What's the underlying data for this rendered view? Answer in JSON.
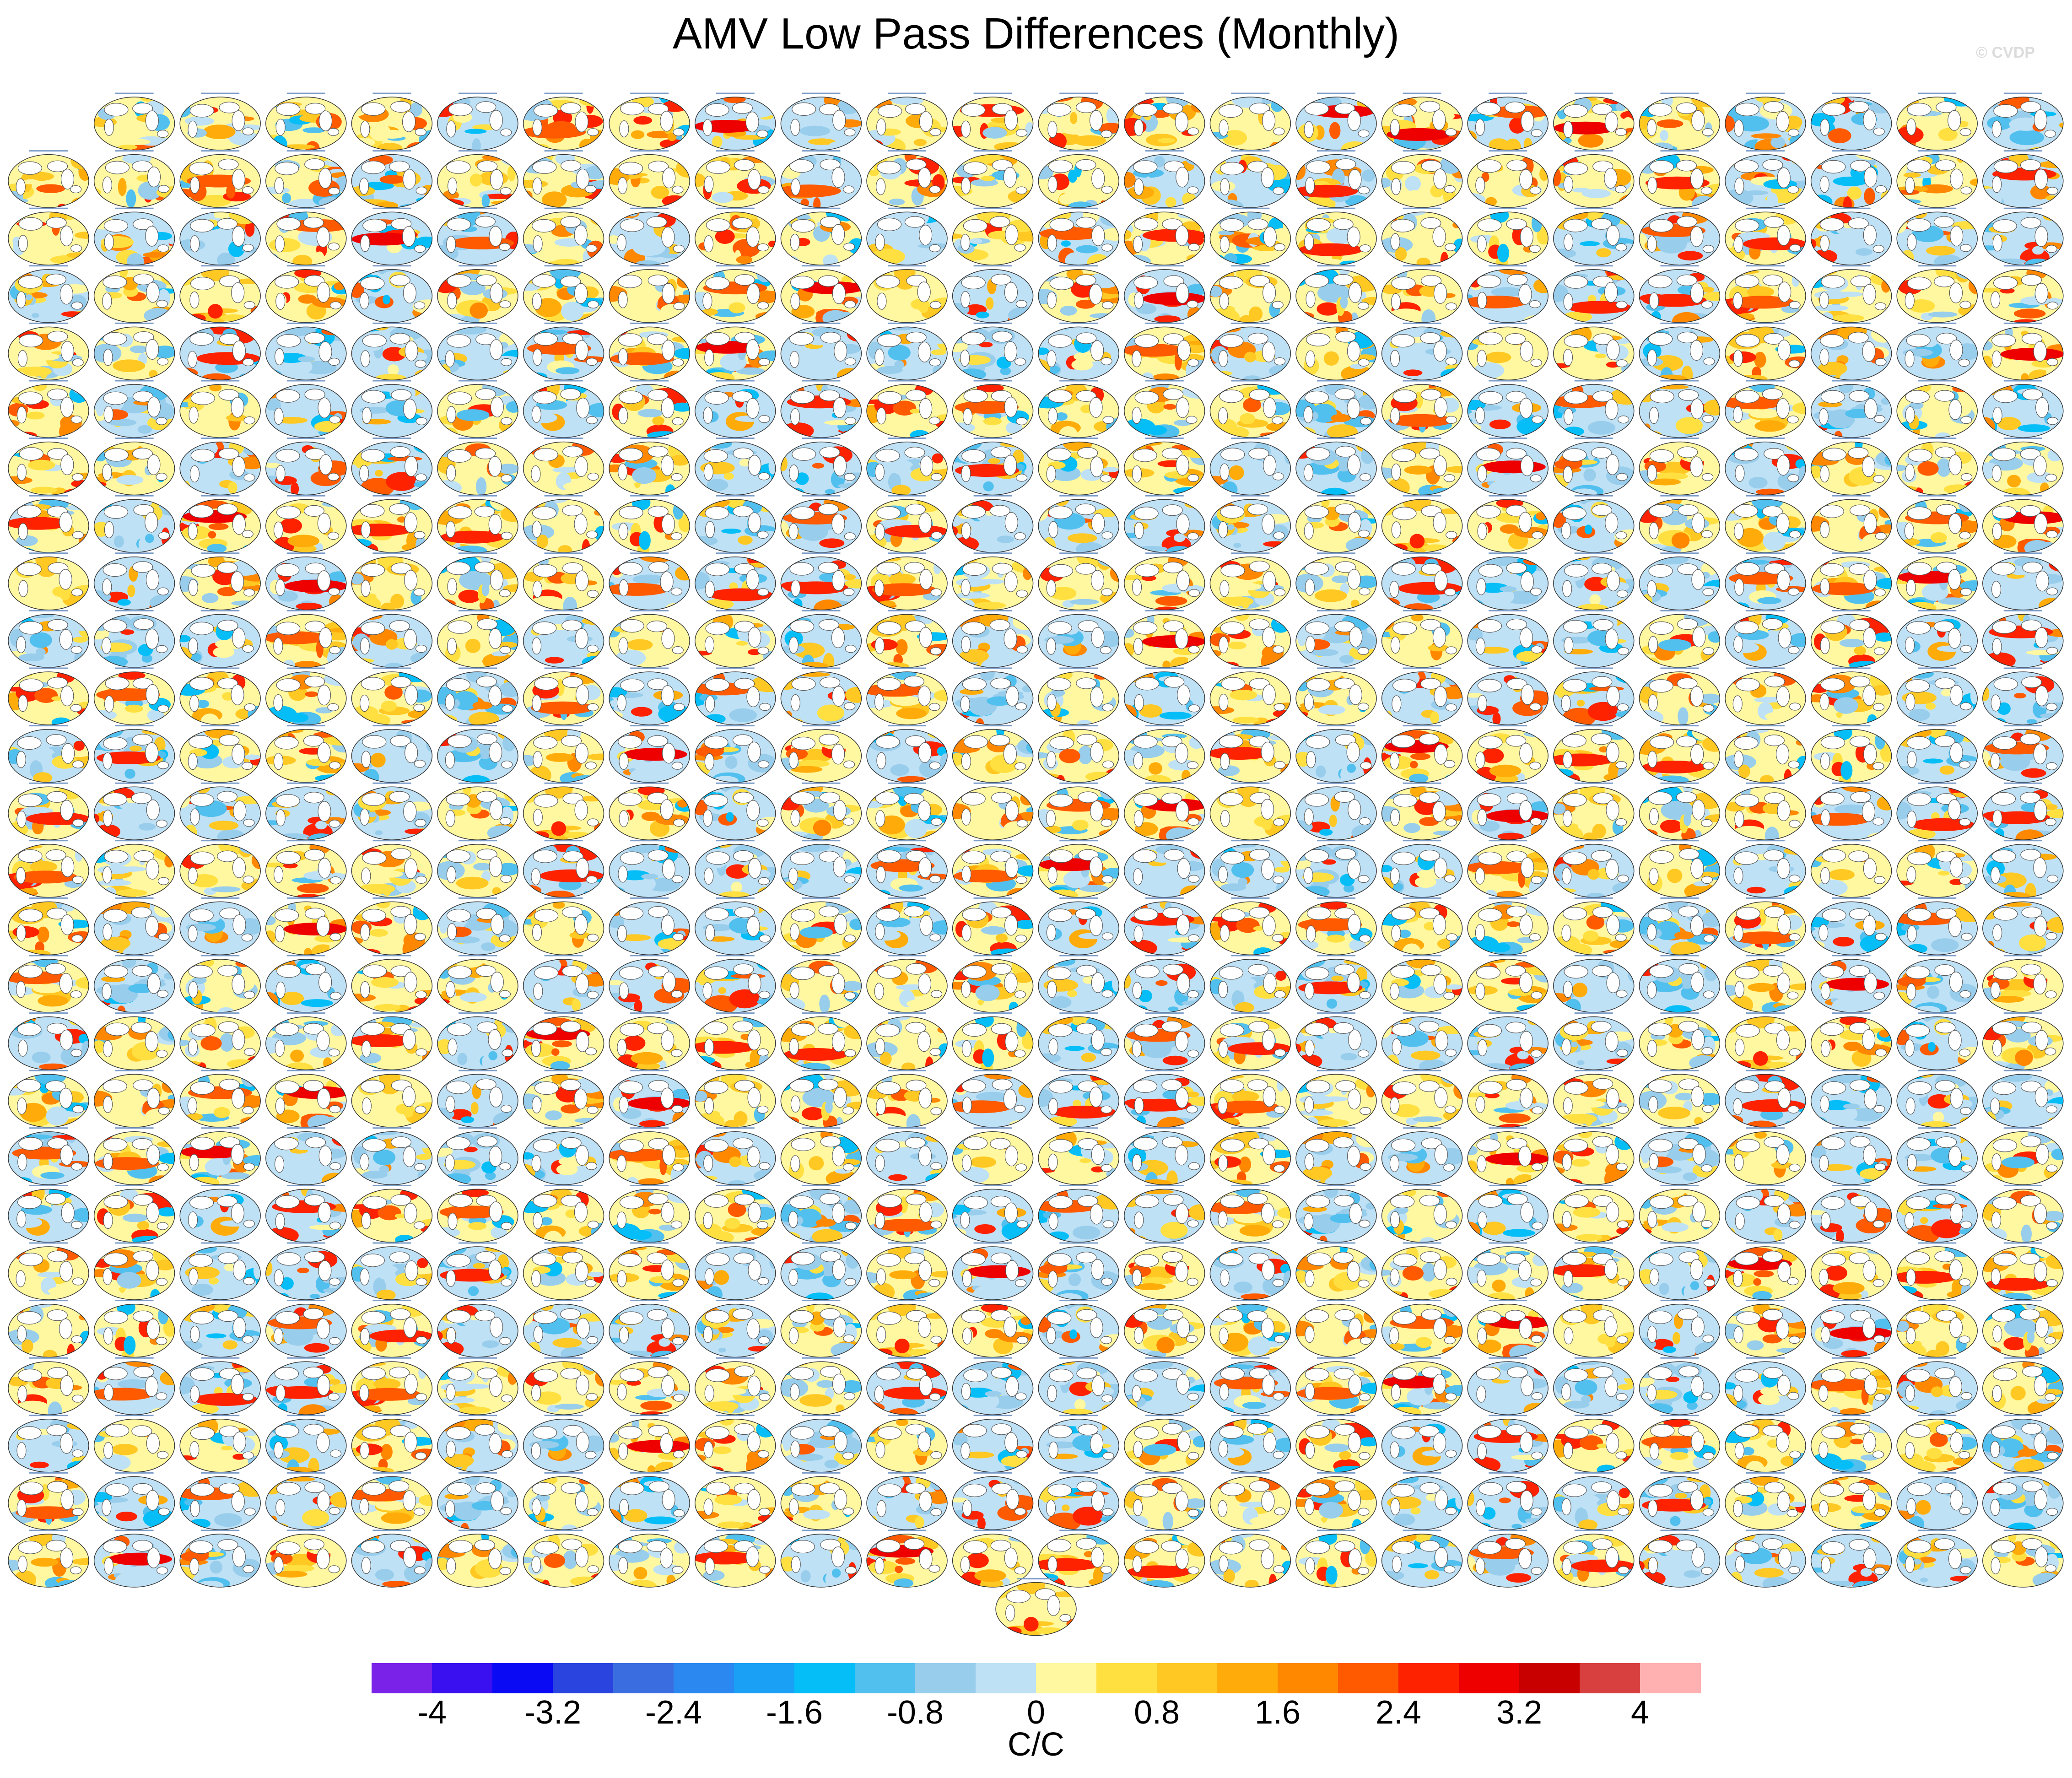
{
  "title": "AMV Low Pass Differences (Monthly)",
  "watermark": "© CVDP",
  "grid": {
    "rows": 26,
    "columns": 24,
    "first_row_columns": 23,
    "extra_centered_panels": 1
  },
  "colorbar": {
    "units": "C/C",
    "colors": [
      "#7a22e8",
      "#3a0ff0",
      "#0a0af5",
      "#2a44e0",
      "#3a6ee0",
      "#2a88f0",
      "#1aa0f5",
      "#05bef8",
      "#52c0ee",
      "#98cdec",
      "#bfe1f5",
      "#fff8a0",
      "#ffe040",
      "#ffc822",
      "#ffac0a",
      "#ff8800",
      "#ff5a00",
      "#ff2200",
      "#ee0000",
      "#c80000",
      "#d84040",
      "#ffb0b0"
    ],
    "tick_labels": [
      "-4",
      "-3.2",
      "-2.4",
      "-1.6",
      "-0.8",
      "0",
      "0.8",
      "1.6",
      "2.4",
      "3.2",
      "4"
    ]
  }
}
